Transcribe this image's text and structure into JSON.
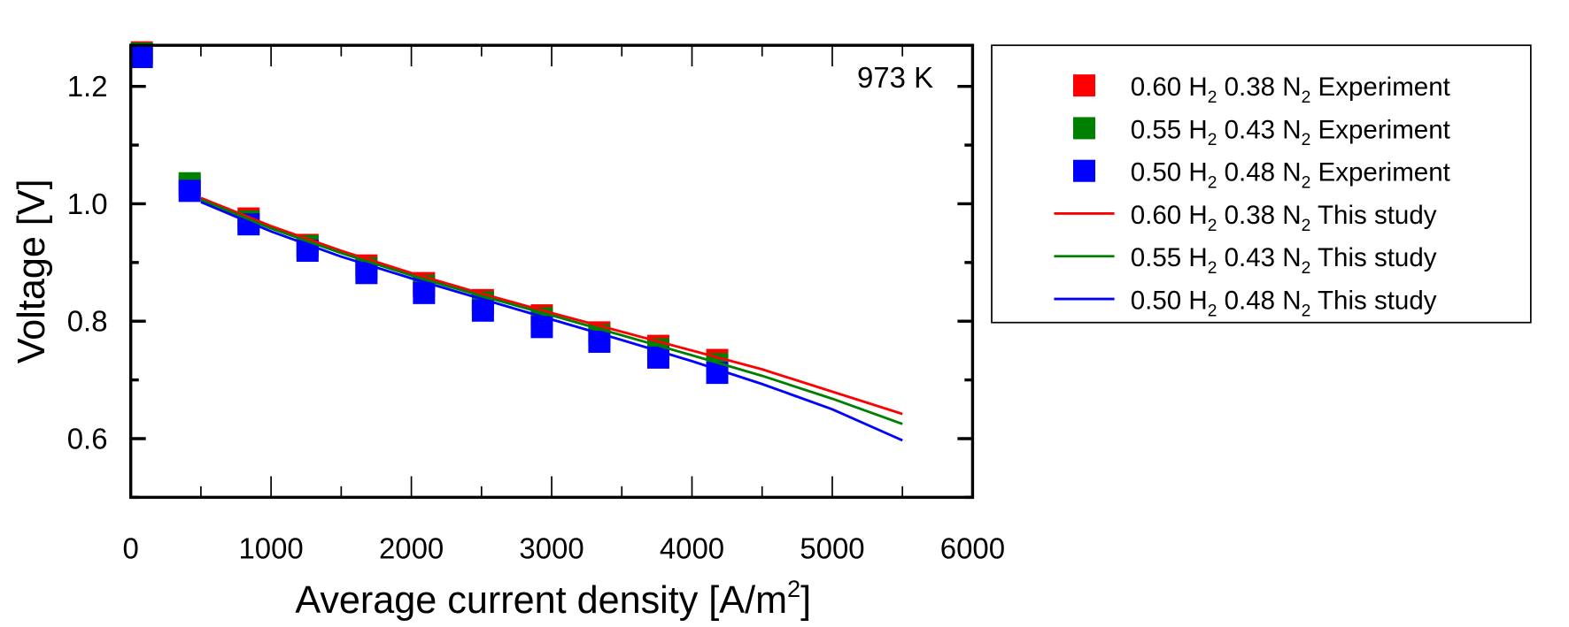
{
  "chart_data": {
    "type": "scatter",
    "title": "",
    "annotation": "973 K",
    "xlabel": "Average current density [A/m",
    "xlabel_sup": "2",
    "xlabel_end": "]",
    "ylabel": "Voltage [V]",
    "xlim": [
      0,
      6000
    ],
    "ylim": [
      0.5,
      1.27
    ],
    "xticks": [
      0,
      1000,
      2000,
      3000,
      4000,
      5000,
      6000
    ],
    "yticks": [
      0.6,
      0.8,
      1.0,
      1.2
    ],
    "ytick_labels": [
      "0.6",
      "0.8",
      "1.0",
      "1.2"
    ],
    "legend_position": "outside-right",
    "series": [
      {
        "name": "0.60 H2 0.38 N2 Experiment",
        "kind": "marker",
        "color": "#ff0000",
        "x": [
          30,
          420,
          840,
          1260,
          1680,
          2090,
          2510,
          2930,
          3340,
          3760,
          4180
        ],
        "y": [
          1.258,
          1.03,
          0.975,
          0.93,
          0.895,
          0.865,
          0.836,
          0.81,
          0.781,
          0.758,
          0.734
        ]
      },
      {
        "name": "0.55 H2 0.43 N2 Experiment",
        "kind": "marker",
        "color": "#008000",
        "x": [
          30,
          420,
          840,
          1260,
          1680,
          2090,
          2510,
          2930,
          3340,
          3760,
          4180
        ],
        "y": [
          1.256,
          1.035,
          0.97,
          0.928,
          0.89,
          0.86,
          0.832,
          0.805,
          0.776,
          0.752,
          0.727
        ]
      },
      {
        "name": "0.50 H2 0.48 N2 Experiment",
        "kind": "marker",
        "color": "#0000ff",
        "x": [
          30,
          420,
          840,
          1260,
          1680,
          2090,
          2510,
          2930,
          3340,
          3760,
          4180
        ],
        "y": [
          1.25,
          1.022,
          0.965,
          0.92,
          0.882,
          0.848,
          0.818,
          0.79,
          0.765,
          0.738,
          0.712
        ]
      },
      {
        "name": "0.60 H2 0.38 N2 This study",
        "kind": "line",
        "color": "#ff0000",
        "x": [
          500,
          1000,
          1500,
          2000,
          2500,
          3000,
          3500,
          4000,
          4500,
          5000,
          5500
        ],
        "y": [
          1.01,
          0.962,
          0.92,
          0.882,
          0.847,
          0.814,
          0.782,
          0.75,
          0.718,
          0.68,
          0.642
        ]
      },
      {
        "name": "0.55 H2 0.43 N2 This study",
        "kind": "line",
        "color": "#008000",
        "x": [
          500,
          1000,
          1500,
          2000,
          2500,
          3000,
          3500,
          4000,
          4500,
          5000,
          5500
        ],
        "y": [
          1.007,
          0.958,
          0.916,
          0.878,
          0.843,
          0.81,
          0.776,
          0.742,
          0.707,
          0.668,
          0.625
        ]
      },
      {
        "name": "0.50 H2 0.48 N2 This study",
        "kind": "line",
        "color": "#0000ff",
        "x": [
          500,
          1000,
          1500,
          2000,
          2500,
          3000,
          3500,
          4000,
          4500,
          5000,
          5500
        ],
        "y": [
          1.003,
          0.953,
          0.91,
          0.873,
          0.838,
          0.803,
          0.768,
          0.732,
          0.693,
          0.65,
          0.597
        ]
      }
    ],
    "legend": [
      {
        "a": "0.60 H",
        "s1": "2",
        "b": " 0.38 N",
        "s2": "2",
        "c": " Experiment"
      },
      {
        "a": "0.55 H",
        "s1": "2",
        "b": " 0.43 N",
        "s2": "2",
        "c": " Experiment"
      },
      {
        "a": "0.50 H",
        "s1": "2",
        "b": " 0.48 N",
        "s2": "2",
        "c": " Experiment"
      },
      {
        "a": "0.60 H",
        "s1": "2",
        "b": " 0.38 N",
        "s2": "2",
        "c": " This study"
      },
      {
        "a": "0.55 H",
        "s1": "2",
        "b": " 0.43 N",
        "s2": "2",
        "c": " This study"
      },
      {
        "a": "0.50 H",
        "s1": "2",
        "b": " 0.48 N",
        "s2": "2",
        "c": " This study"
      }
    ]
  }
}
